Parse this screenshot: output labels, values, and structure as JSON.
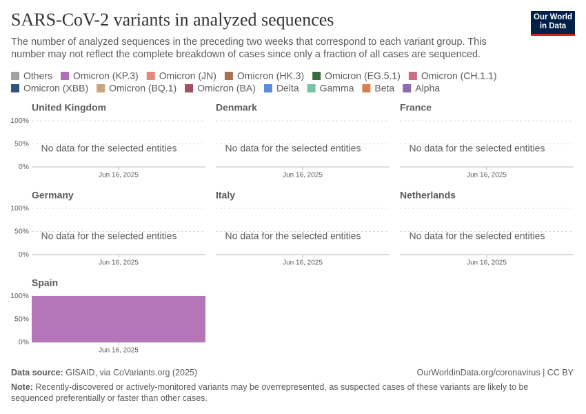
{
  "title": "SARS-CoV-2 variants in analyzed sequences",
  "subtitle": "The number of analyzed sequences in the preceding two weeks that correspond to each variant group. This number may not reflect the complete breakdown of cases since only a fraction of all cases are sequenced.",
  "logo": [
    "Our World",
    "in Data"
  ],
  "legend": [
    {
      "name": "Others",
      "color": "#a2a2a2"
    },
    {
      "name": "Omicron (KP.3)",
      "color": "#b16fb5"
    },
    {
      "name": "Omicron (JN)",
      "color": "#e5897a"
    },
    {
      "name": "Omicron (HK.3)",
      "color": "#a8704e"
    },
    {
      "name": "Omicron (EG.5.1)",
      "color": "#3b6a3a"
    },
    {
      "name": "Omicron (CH.1.1)",
      "color": "#c96e86"
    },
    {
      "name": "Omicron (XBB)",
      "color": "#2e5482"
    },
    {
      "name": "Omicron (BQ.1)",
      "color": "#c9a67f"
    },
    {
      "name": "Omicron (BA)",
      "color": "#a15262"
    },
    {
      "name": "Delta",
      "color": "#5a8ed6"
    },
    {
      "name": "Gamma",
      "color": "#7cc3a6"
    },
    {
      "name": "Beta",
      "color": "#d3824e"
    },
    {
      "name": "Alpha",
      "color": "#8c6bb1"
    }
  ],
  "chart_data": [
    {
      "type": "area",
      "title": "United Kingdom",
      "x": [
        "Jun 16, 2025"
      ],
      "ylim": [
        0,
        100
      ],
      "yticks": [
        {
          "value": 0,
          "label": "0%"
        },
        {
          "value": 50,
          "label": "50%"
        },
        {
          "value": 100,
          "label": "100%"
        }
      ],
      "message": "No data for the selected entities"
    },
    {
      "type": "area",
      "title": "Denmark",
      "x": [
        "Jun 16, 2025"
      ],
      "ylim": [
        0,
        100
      ],
      "yticks": [
        0,
        50,
        100
      ],
      "message": "No data for the selected entities"
    },
    {
      "type": "area",
      "title": "France",
      "x": [
        "Jun 16, 2025"
      ],
      "ylim": [
        0,
        100
      ],
      "yticks": [
        0,
        50,
        100
      ],
      "message": "No data for the selected entities"
    },
    {
      "type": "area",
      "title": "Germany",
      "x": [
        "Jun 16, 2025"
      ],
      "ylim": [
        0,
        100
      ],
      "yticks": [
        {
          "value": 0,
          "label": "0%"
        },
        {
          "value": 50,
          "label": "50%"
        },
        {
          "value": 100,
          "label": "100%"
        }
      ],
      "message": "No data for the selected entities"
    },
    {
      "type": "area",
      "title": "Italy",
      "x": [
        "Jun 16, 2025"
      ],
      "ylim": [
        0,
        100
      ],
      "yticks": [
        0,
        50,
        100
      ],
      "message": "No data for the selected entities"
    },
    {
      "type": "area",
      "title": "Netherlands",
      "x": [
        "Jun 16, 2025"
      ],
      "ylim": [
        0,
        100
      ],
      "yticks": [
        0,
        50,
        100
      ],
      "message": "No data for the selected entities"
    },
    {
      "type": "area",
      "title": "Spain",
      "x": [
        "Jun 16, 2025"
      ],
      "ylim": [
        0,
        100
      ],
      "yticks": [
        {
          "value": 0,
          "label": "0%"
        },
        {
          "value": 50,
          "label": "50%"
        },
        {
          "value": 100,
          "label": "100%"
        }
      ],
      "series": [
        {
          "name": "Omicron (KP.3)",
          "color": "#b16fb5",
          "values": [
            100
          ]
        }
      ]
    }
  ],
  "source_label": "Data source:",
  "source": "GISAID, via CoVariants.org (2025)",
  "url": "OurWorldinData.org/coronavirus | CC BY",
  "note_label": "Note:",
  "note": "Recently-discovered or actively-monitored variants may be overrepresented, as suspected cases of these variants are likely to be sequenced preferentially or faster than other cases."
}
